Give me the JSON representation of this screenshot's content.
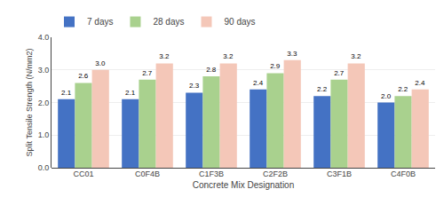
{
  "chart_data": {
    "type": "bar",
    "categories": [
      "CC01",
      "C0F4B",
      "C1F3B",
      "C2F2B",
      "C3F1B",
      "C4F0B"
    ],
    "series": [
      {
        "name": "7 days",
        "color": "#4472c4",
        "values": [
          2.1,
          2.1,
          2.3,
          2.4,
          2.2,
          2.0
        ],
        "value_labels": [
          "2.1",
          "2.1",
          "2.3",
          "2.4",
          "2.2",
          "2.0"
        ]
      },
      {
        "name": "28 days",
        "color": "#a9d18e",
        "values": [
          2.6,
          2.7,
          2.8,
          2.9,
          2.7,
          2.2
        ],
        "value_labels": [
          "2.6",
          "2.7",
          "2.8",
          "2.9",
          "2.7",
          "2.2"
        ]
      },
      {
        "name": "90 days",
        "color": "#f4c7b8",
        "values": [
          3.0,
          3.2,
          3.2,
          3.3,
          3.2,
          2.4
        ],
        "value_labels": [
          "3.0",
          "3.2",
          "3.2",
          "3.3",
          "3.2",
          "2.4"
        ]
      }
    ],
    "xlabel": "Concrete Mix Designation",
    "ylabel": "Split Tensile Strength (N/mm2)",
    "ylim": [
      0.0,
      4.0
    ],
    "yticks": [
      {
        "value": 0.0,
        "label": "0.0"
      },
      {
        "value": 1.0,
        "label": "1.0"
      },
      {
        "value": 2.0,
        "label": "2.0"
      },
      {
        "value": 3.0,
        "label": "3.0"
      },
      {
        "value": 4.0,
        "label": "4.0"
      }
    ],
    "grid": true,
    "legend": "upper left",
    "data_labels": true
  }
}
